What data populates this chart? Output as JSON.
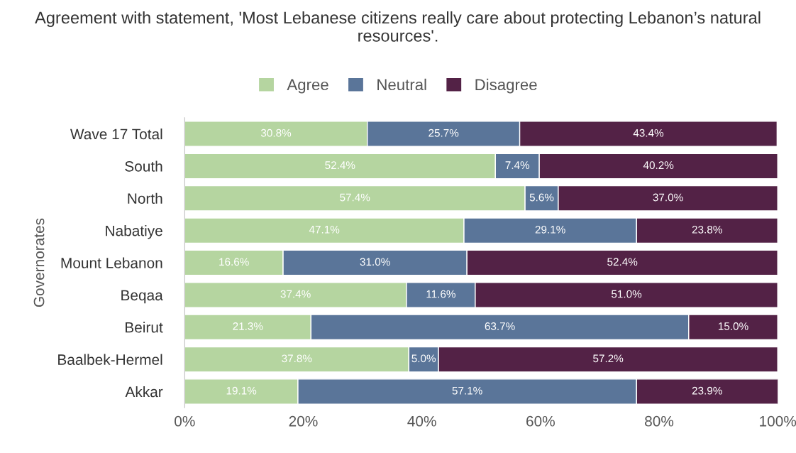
{
  "chart_data": {
    "type": "bar",
    "orientation": "horizontal",
    "stacked": true,
    "title": "Agreement with statement, 'Most Lebanese citizens really care about protecting Lebanon’s natural resources'.",
    "ylabel": "Governorates",
    "categories": [
      "Wave 17 Total",
      "South",
      "North",
      "Nabatiye",
      "Mount Lebanon",
      "Beqaa",
      "Beirut",
      "Baalbek-Hermel",
      "Akkar"
    ],
    "series": [
      {
        "name": "Agree",
        "color": "#b5d5a0",
        "values": [
          30.8,
          52.4,
          57.4,
          47.1,
          16.6,
          37.4,
          21.3,
          37.8,
          19.1
        ],
        "value_labels": [
          "30.8%",
          "52.4%",
          "57.4%",
          "47.1%",
          "16.6%",
          "37.4%",
          "21.3%",
          "37.8%",
          "19.1%"
        ]
      },
      {
        "name": "Neutral",
        "color": "#5a7599",
        "values": [
          25.7,
          7.4,
          5.6,
          29.1,
          31.0,
          11.6,
          63.7,
          5.0,
          57.1
        ],
        "value_labels": [
          "25.7%",
          "7.4%",
          "5.6%",
          "29.1%",
          "31.0%",
          "11.6%",
          "63.7%",
          "5.0%",
          "57.1%"
        ]
      },
      {
        "name": "Disagree",
        "color": "#532246",
        "values": [
          43.4,
          40.2,
          37.0,
          23.8,
          52.4,
          51.0,
          15.0,
          57.2,
          23.9
        ],
        "value_labels": [
          "43.4%",
          "40.2%",
          "37.0%",
          "23.8%",
          "52.4%",
          "51.0%",
          "15.0%",
          "57.2%",
          "23.9%"
        ]
      }
    ],
    "xlim": [
      0,
      100
    ],
    "xticks": [
      {
        "value": 0,
        "label": "0%"
      },
      {
        "value": 20,
        "label": "20%"
      },
      {
        "value": 40,
        "label": "40%"
      },
      {
        "value": 60,
        "label": "60%"
      },
      {
        "value": 80,
        "label": "80%"
      },
      {
        "value": 100,
        "label": "100%"
      }
    ],
    "grid": false,
    "legend": "top"
  }
}
